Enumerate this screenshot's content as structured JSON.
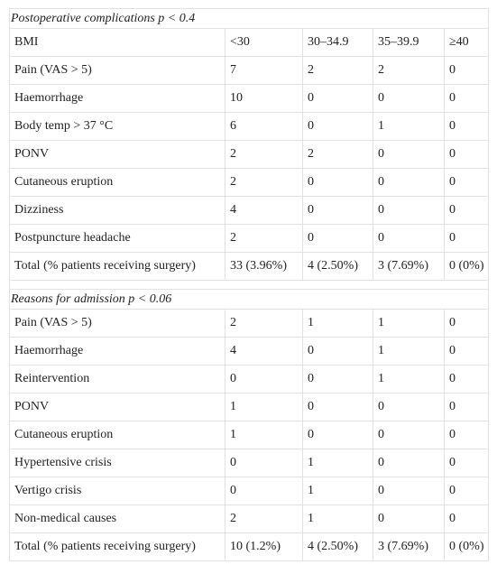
{
  "section1": {
    "title": "Postoperative complications p < 0.4",
    "header": [
      "BMI",
      "<30",
      "30–34.9",
      "35–39.9",
      "≥40"
    ],
    "rows": [
      [
        "Pain (VAS > 5)",
        "7",
        "2",
        "2",
        "0"
      ],
      [
        "Haemorrhage",
        "10",
        "0",
        "0",
        "0"
      ],
      [
        "Body temp > 37 °C",
        "6",
        "0",
        "1",
        "0"
      ],
      [
        "PONV",
        "2",
        "2",
        "0",
        "0"
      ],
      [
        "Cutaneous eruption",
        "2",
        "0",
        "0",
        "0"
      ],
      [
        "Dizziness",
        "4",
        "0",
        "0",
        "0"
      ],
      [
        "Postpuncture headache",
        "2",
        "0",
        "0",
        "0"
      ],
      [
        "Total (% patients receiving surgery)",
        "33 (3.96%)",
        "4 (2.50%)",
        "3 (7.69%)",
        "0 (0%)"
      ]
    ]
  },
  "section2": {
    "title": "Reasons for admission p < 0.06",
    "rows": [
      [
        "Pain (VAS > 5)",
        "2",
        "1",
        "1",
        "0"
      ],
      [
        "Haemorrhage",
        "4",
        "0",
        "1",
        "0"
      ],
      [
        "Reintervention",
        "0",
        "0",
        "1",
        "0"
      ],
      [
        "PONV",
        "1",
        "0",
        "0",
        "0"
      ],
      [
        "Cutaneous eruption",
        "1",
        "0",
        "0",
        "0"
      ],
      [
        "Hypertensive crisis",
        "0",
        "1",
        "0",
        "0"
      ],
      [
        "Vertigo crisis",
        "0",
        "1",
        "0",
        "0"
      ],
      [
        "Non-medical causes",
        "2",
        "1",
        "0",
        "0"
      ],
      [
        "Total (% patients receiving surgery)",
        "10 (1.2%)",
        "4 (2.50%)",
        "3 (7.69%)",
        "0 (0%)"
      ]
    ]
  }
}
